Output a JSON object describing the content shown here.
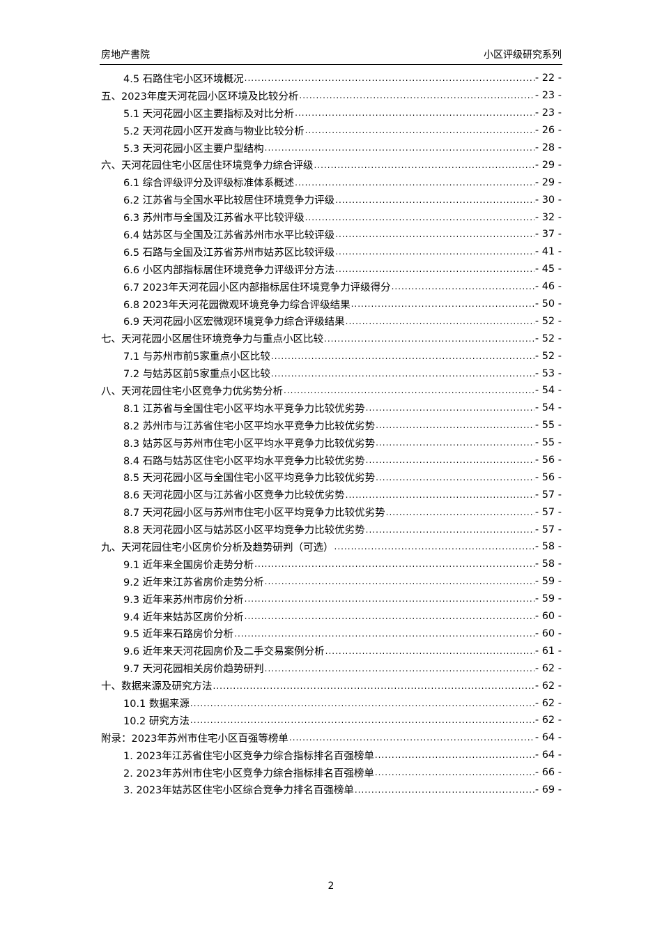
{
  "header": {
    "left": "房地产書院",
    "right": "小区评级研究系列"
  },
  "toc": [
    {
      "level": 2,
      "title": "4.5 石路住宅小区环境概况",
      "page": "- 22 -"
    },
    {
      "level": 1,
      "title": "五、2023年度天河花园小区环境及比较分析",
      "page": "- 23 -"
    },
    {
      "level": 2,
      "title": "5.1 天河花园小区主要指标及对比分析",
      "page": "- 23 -"
    },
    {
      "level": 2,
      "title": "5.2 天河花园小区开发商与物业比较分析",
      "page": "- 26 -"
    },
    {
      "level": 2,
      "title": "5.3 天河花园小区主要户型结构",
      "page": "- 28 -"
    },
    {
      "level": 1,
      "title": "六、天河花园住宅小区居住环境竞争力综合评级",
      "page": "- 29 -"
    },
    {
      "level": 2,
      "title": "6.1 综合评级评分及评级标准体系概述",
      "page": "- 29 -"
    },
    {
      "level": 2,
      "title": "6.2 江苏省与全国水平比较居住环境竞争力评级",
      "page": "- 30 -"
    },
    {
      "level": 2,
      "title": "6.3 苏州市与全国及江苏省水平比较评级",
      "page": "- 32 -"
    },
    {
      "level": 2,
      "title": "6.4 姑苏区与全国及江苏省苏州市水平比较评级",
      "page": "- 37 -"
    },
    {
      "level": 2,
      "title": "6.5 石路与全国及江苏省苏州市姑苏区比较评级",
      "page": "- 41 -"
    },
    {
      "level": 2,
      "title": "6.6 小区内部指标居住环境竞争力评级评分方法",
      "page": "- 45 -"
    },
    {
      "level": 2,
      "title": "6.7 2023年天河花园小区内部指标居住环境竞争力评级得分",
      "page": "- 46 -"
    },
    {
      "level": 2,
      "title": "6.8 2023年天河花园微观环境竞争力综合评级结果",
      "page": "- 50 -"
    },
    {
      "level": 2,
      "title": "6.9 天河花园小区宏微观环境竞争力综合评级结果",
      "page": "- 52 -"
    },
    {
      "level": 1,
      "title": "七、天河花园小区居住环境竞争力与重点小区比较",
      "page": "- 52 -"
    },
    {
      "level": 2,
      "title": "7.1 与苏州市前5家重点小区比较",
      "page": "- 52 -"
    },
    {
      "level": 2,
      "title": "7.2 与姑苏区前5家重点小区比较",
      "page": "- 53 -"
    },
    {
      "level": 1,
      "title": "八、天河花园住宅小区竞争力优劣势分析",
      "page": "- 54 -"
    },
    {
      "level": 2,
      "title": "8.1 江苏省与全国住宅小区平均水平竞争力比较优劣势",
      "page": "- 54 -"
    },
    {
      "level": 2,
      "title": "8.2 苏州市与江苏省住宅小区平均水平竞争力比较优劣势",
      "page": "- 55 -"
    },
    {
      "level": 2,
      "title": "8.3 姑苏区与苏州市住宅小区平均水平竞争力比较优劣势",
      "page": "- 55 -"
    },
    {
      "level": 2,
      "title": "8.4 石路与姑苏区住宅小区平均水平竞争力比较优劣势",
      "page": "- 56 -"
    },
    {
      "level": 2,
      "title": "8.5 天河花园小区与全国住宅小区平均竞争力比较优劣势",
      "page": "- 56 -"
    },
    {
      "level": 2,
      "title": "8.6 天河花园小区与江苏省小区竞争力比较优劣势",
      "page": "- 57 -"
    },
    {
      "level": 2,
      "title": "8.7 天河花园小区与苏州市住宅小区平均竞争力比较优劣势",
      "page": "- 57 -"
    },
    {
      "level": 2,
      "title": "8.8 天河花园小区与姑苏区小区平均竞争力比较优劣势",
      "page": "- 57 -"
    },
    {
      "level": 1,
      "title": "九、天河花园住宅小区房价分析及趋势研判（可选）",
      "page": "- 58 -"
    },
    {
      "level": 2,
      "title": "9.1 近年来全国房价走势分析",
      "page": "- 58 -"
    },
    {
      "level": 2,
      "title": "9.2 近年来江苏省房价走势分析",
      "page": "- 59 -"
    },
    {
      "level": 2,
      "title": "9.3 近年来苏州市房价分析",
      "page": "- 59 -"
    },
    {
      "level": 2,
      "title": "9.4 近年来姑苏区房价分析",
      "page": "- 60 -"
    },
    {
      "level": 2,
      "title": "9.5 近年来石路房价分析",
      "page": "- 60 -"
    },
    {
      "level": 2,
      "title": "9.6 近年来天河花园房价及二手交易案例分析",
      "page": "- 61 -"
    },
    {
      "level": 2,
      "title": "9.7 天河花园相关房价趋势研判",
      "page": "- 62 -"
    },
    {
      "level": 1,
      "title": "十、数据来源及研究方法",
      "page": "- 62 -"
    },
    {
      "level": 2,
      "title": "10.1 数据来源",
      "page": "- 62 -"
    },
    {
      "level": 2,
      "title": "10.2 研究方法",
      "page": "- 62 -"
    },
    {
      "level": 1,
      "title": "附录：2023年苏州市住宅小区百强等榜单",
      "page": "- 64 -"
    },
    {
      "level": 2,
      "title": "1. 2023年江苏省住宅小区竞争力综合指标排名百强榜单",
      "page": "- 64 -"
    },
    {
      "level": 2,
      "title": "2. 2023年苏州市住宅小区竞争力综合指标排名百强榜单",
      "page": "- 66 -"
    },
    {
      "level": 2,
      "title": "3. 2023年姑苏区住宅小区综合竞争力排名百强榜单",
      "page": "- 69 -"
    }
  ],
  "page_number": "2"
}
